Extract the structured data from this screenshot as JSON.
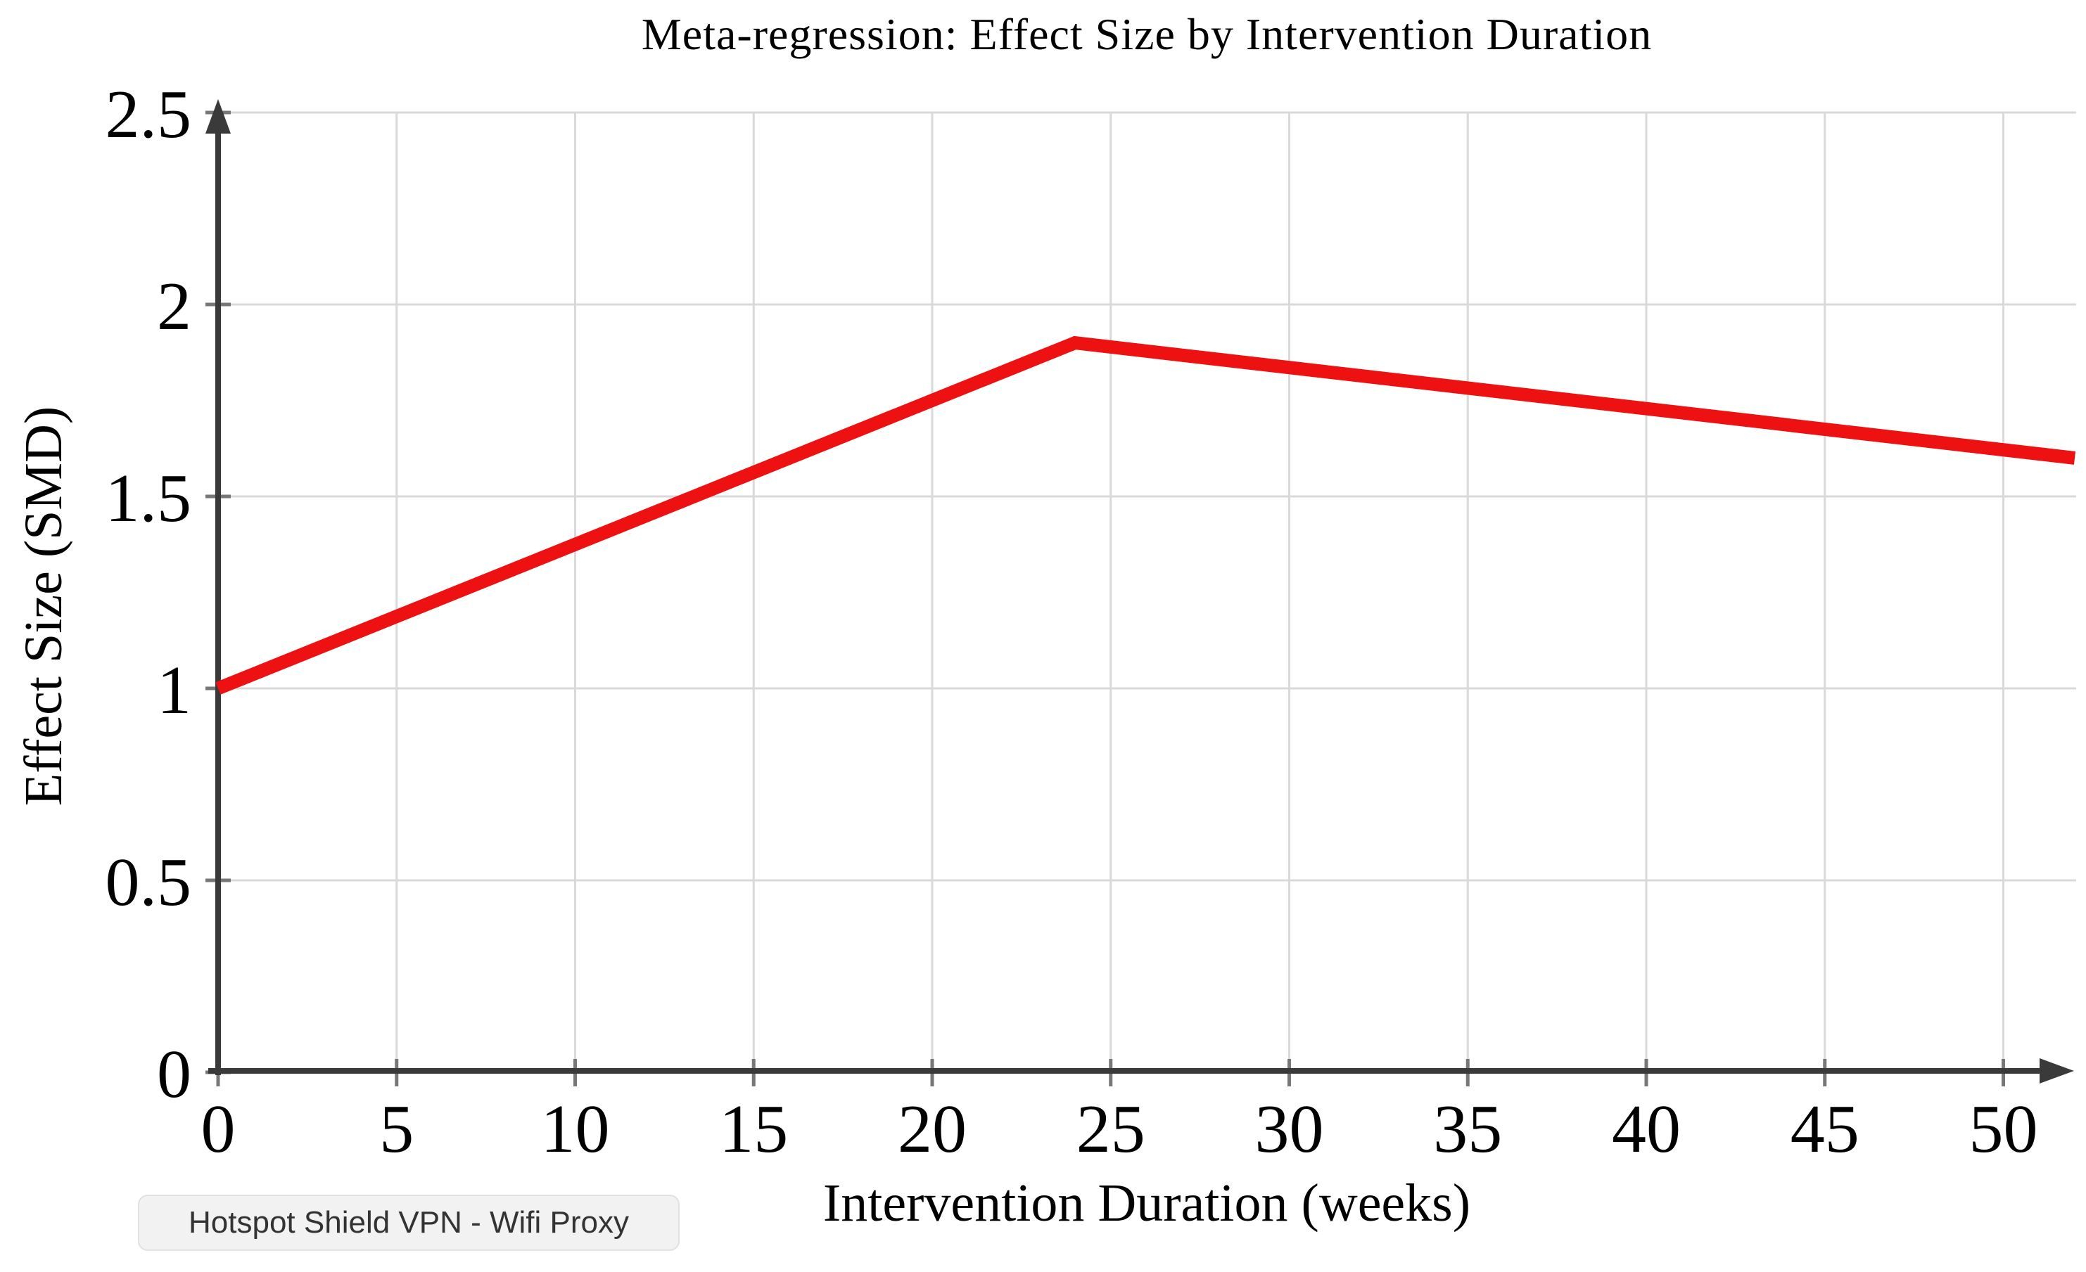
{
  "page": {
    "background": "#ffffff"
  },
  "chart_data": {
    "type": "line",
    "title": "Meta-regression: Effect Size by Intervention Duration",
    "xlabel": "Intervention Duration (weeks)",
    "ylabel": "Effect Size (SMD)",
    "xlim": [
      0,
      52
    ],
    "ylim": [
      0,
      2.5
    ],
    "x_ticks": [
      0,
      5,
      10,
      15,
      20,
      25,
      30,
      35,
      40,
      45,
      50
    ],
    "y_ticks": [
      0,
      0.5,
      1,
      1.5,
      2,
      2.5
    ],
    "grid": true,
    "legend": "none",
    "series": [
      {
        "color": "#ee1111",
        "points": [
          {
            "x": 0,
            "y": 1.0
          },
          {
            "x": 24,
            "y": 1.9
          },
          {
            "x": 52,
            "y": 1.6
          }
        ]
      }
    ]
  },
  "tooltip": {
    "label": "Hotspot Shield VPN - Wifi Proxy"
  },
  "colors": {
    "grid": "#d9d9d9",
    "axis": "#3a3a3a",
    "tick": "#777777",
    "text": "#000000",
    "series_red": "#ee1111",
    "tooltip_bg": "#f2f2f3",
    "tooltip_border": "#e1e1e4",
    "tooltip_text": "#333333"
  }
}
